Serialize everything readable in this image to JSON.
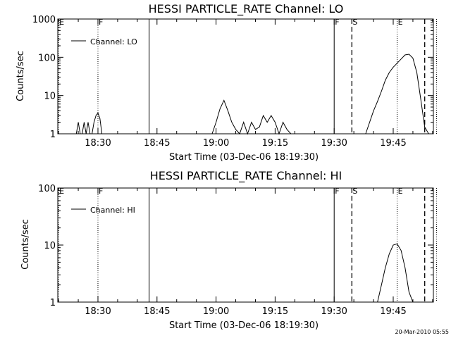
{
  "chart_data": [
    {
      "type": "line",
      "title": "HESSI PARTICLE_RATE Channel: LO",
      "xlabel": "Start Time (03-Dec-06 18:19:30)",
      "ylabel": "Counts/sec",
      "yscale": "log",
      "ylim": [
        1,
        1000
      ],
      "xlim_minutes": [
        18.33,
        19.92
      ],
      "y_tick_labels": [
        "1",
        "10",
        "100",
        "1000"
      ],
      "x_tick_labels": [
        "18:30",
        "18:45",
        "19:00",
        "19:15",
        "19:30",
        "19:45"
      ],
      "legend": {
        "placement": "top-left",
        "entries": [
          "Channel: LO"
        ]
      },
      "markers": [
        {
          "label": "E",
          "x": "18:20",
          "style": "dotted"
        },
        {
          "label": "F",
          "x": "18:30",
          "style": "dotted"
        },
        {
          "label": "",
          "x": "18:43",
          "style": "solid"
        },
        {
          "label": "F",
          "x": "19:30",
          "style": "solid"
        },
        {
          "label": "S",
          "x": "19:34.5",
          "style": "dashed"
        },
        {
          "label": "E",
          "x": "19:46",
          "style": "dotted"
        },
        {
          "label": "",
          "x": "19:53",
          "style": "dashed"
        },
        {
          "label": "",
          "x": "19:56",
          "style": "dotted"
        }
      ],
      "series": [
        {
          "name": "Channel: LO",
          "x": [
            "18:24.5",
            "18:25",
            "18:25.5",
            "18:26",
            "18:26.5",
            "18:27",
            "18:27.5",
            "18:28",
            "18:28.5",
            "18:29",
            "18:29.5",
            "18:30",
            "18:30.5",
            "18:31",
            "18:31.5",
            "18:32",
            "18:59",
            "19:00",
            "19:01",
            "19:02",
            "19:03",
            "19:04",
            "19:05",
            "19:06",
            "19:07",
            "19:08",
            "19:09",
            "19:10",
            "19:11",
            "19:12",
            "19:13",
            "19:14",
            "19:15",
            "19:16",
            "19:17",
            "19:18",
            "19:19",
            "19:38",
            "19:39",
            "19:40",
            "19:41",
            "19:42",
            "19:43",
            "19:44",
            "19:45",
            "19:46",
            "19:47",
            "19:48",
            "19:49",
            "19:50",
            "19:51",
            "19:52",
            "19:53",
            "19:54"
          ],
          "values": [
            1,
            2,
            1,
            1,
            2,
            1,
            2,
            1,
            1,
            2,
            3,
            3.5,
            2.5,
            1,
            1,
            1,
            1,
            2,
            4.5,
            7.5,
            4,
            2,
            1.3,
            1,
            2,
            1,
            2,
            1.3,
            1.5,
            3,
            2,
            3,
            2,
            1,
            2,
            1.3,
            1,
            1,
            2,
            4,
            7,
            13,
            25,
            40,
            55,
            70,
            90,
            115,
            120,
            95,
            40,
            8,
            1.5,
            1
          ]
        }
      ]
    },
    {
      "type": "line",
      "title": "HESSI PARTICLE_RATE Channel: HI",
      "xlabel": "Start Time (03-Dec-06 18:19:30)",
      "ylabel": "Counts/sec",
      "yscale": "log",
      "ylim": [
        1,
        100
      ],
      "xlim_minutes": [
        18.33,
        19.92
      ],
      "y_tick_labels": [
        "1",
        "10",
        "100"
      ],
      "x_tick_labels": [
        "18:30",
        "18:45",
        "19:00",
        "19:15",
        "19:30",
        "19:45"
      ],
      "legend": {
        "placement": "top-left",
        "entries": [
          "Channel: HI"
        ]
      },
      "markers": [
        {
          "label": "E",
          "x": "18:20",
          "style": "dotted"
        },
        {
          "label": "F",
          "x": "18:30",
          "style": "dotted"
        },
        {
          "label": "",
          "x": "18:43",
          "style": "solid"
        },
        {
          "label": "F",
          "x": "19:30",
          "style": "solid"
        },
        {
          "label": "S",
          "x": "19:34.5",
          "style": "dashed"
        },
        {
          "label": "E",
          "x": "19:46",
          "style": "dotted"
        },
        {
          "label": "",
          "x": "19:53",
          "style": "dashed"
        },
        {
          "label": "",
          "x": "19:56",
          "style": "dotted"
        }
      ],
      "series": [
        {
          "name": "Channel: HI",
          "x": [
            "19:41",
            "19:42",
            "19:43",
            "19:44",
            "19:45",
            "19:46",
            "19:47",
            "19:48",
            "19:49",
            "19:50"
          ],
          "values": [
            1,
            2,
            4,
            7,
            10,
            10.5,
            8,
            4,
            1.5,
            1
          ]
        }
      ]
    }
  ],
  "footer": {
    "timestamp": "20-Mar-2010 05:55"
  }
}
